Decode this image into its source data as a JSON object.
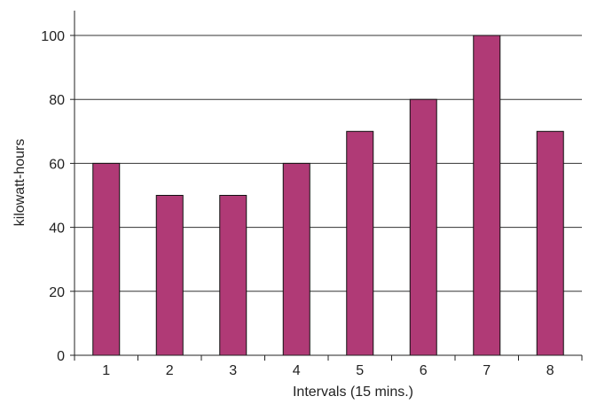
{
  "chart_data": {
    "type": "bar",
    "categories": [
      "1",
      "2",
      "3",
      "4",
      "5",
      "6",
      "7",
      "8"
    ],
    "values": [
      60,
      50,
      50,
      60,
      70,
      80,
      100,
      70
    ],
    "title": "",
    "xlabel": "Intervals (15 mins.)",
    "ylabel": "kilowatt-hours",
    "ylim": [
      0,
      100
    ],
    "yticks": [
      0,
      20,
      40,
      60,
      80,
      100
    ],
    "grid": "horizontal",
    "legend": "none",
    "bar_color": "#b03a76",
    "bar_edge_color": "#111111",
    "grid_color": "#333333"
  }
}
